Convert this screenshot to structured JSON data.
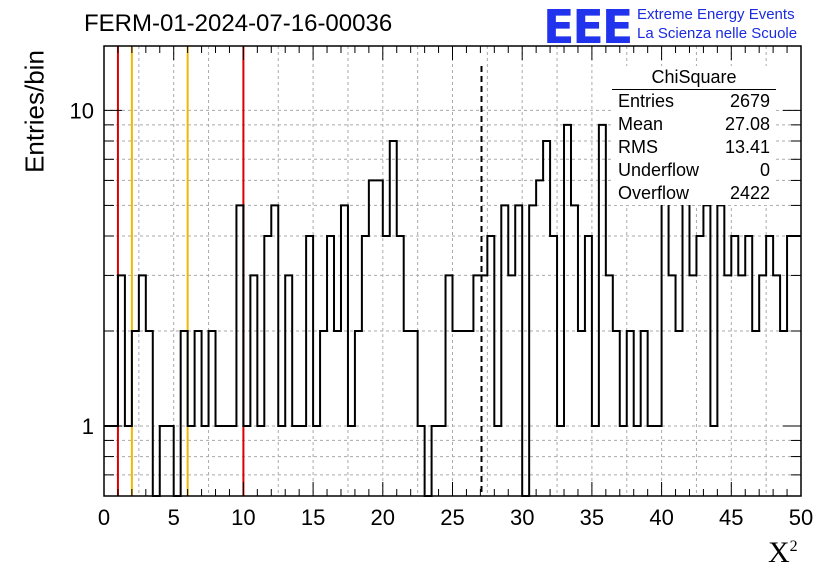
{
  "header": {
    "run_title": "FERM-01-2024-07-16-00036",
    "logo_text": "EEE",
    "logo_line1": "Extreme Energy Events",
    "logo_line2": "La Scienza nelle Scuole"
  },
  "stats_box": {
    "title": "ChiSquare",
    "rows": [
      {
        "label": "Entries",
        "value": "2679"
      },
      {
        "label": "Mean",
        "value": "27.08"
      },
      {
        "label": "RMS",
        "value": "13.41"
      },
      {
        "label": "Underflow",
        "value": "0"
      },
      {
        "label": "Overflow",
        "value": "2422"
      }
    ]
  },
  "chart_data": {
    "type": "bar",
    "style": "step-histogram",
    "xlabel": "X",
    "xlabel_superscript": "2",
    "ylabel": "Entries/bin",
    "xlim": [
      0,
      50
    ],
    "ylim": [
      0.6,
      16
    ],
    "y_scale": "log",
    "x_ticks": [
      0,
      5,
      10,
      15,
      20,
      25,
      30,
      35,
      40,
      45,
      50
    ],
    "y_ticks": [
      1,
      10
    ],
    "grid": true,
    "bin_width": 0.5,
    "values": [
      1,
      1,
      3,
      1,
      2,
      3,
      2,
      0,
      1,
      1,
      0,
      2,
      1,
      2,
      1,
      2,
      1,
      1,
      1,
      5,
      1,
      3,
      1,
      4,
      5,
      1,
      3,
      1,
      1,
      4,
      1,
      2,
      4,
      2,
      5,
      1,
      2,
      4,
      6,
      6,
      4,
      8,
      4,
      2,
      2,
      1,
      0,
      1,
      1,
      3,
      2,
      2,
      2,
      3,
      3,
      4,
      1,
      5,
      3,
      5,
      0,
      5,
      6,
      8,
      4,
      1,
      9,
      5,
      2,
      4,
      1,
      9,
      3,
      2,
      1,
      2,
      1,
      2,
      1,
      1,
      6,
      3,
      2,
      6,
      3,
      4,
      5,
      1,
      5,
      3,
      4,
      3,
      4,
      2,
      3,
      4,
      3,
      2,
      4,
      4
    ],
    "vertical_lines": [
      {
        "x": 1,
        "color": "#dd0000",
        "style": "solid"
      },
      {
        "x": 2,
        "color": "#f2b800",
        "style": "solid"
      },
      {
        "x": 6,
        "color": "#f2b800",
        "style": "solid"
      },
      {
        "x": 10,
        "color": "#dd0000",
        "style": "solid"
      },
      {
        "x": 27.08,
        "color": "#000000",
        "style": "dashed"
      }
    ]
  }
}
